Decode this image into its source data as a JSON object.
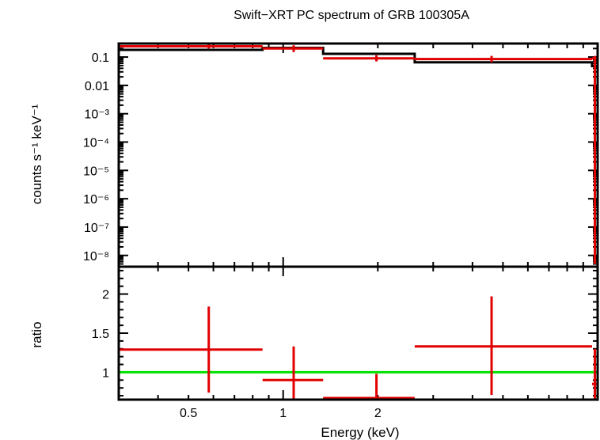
{
  "chart_data": [
    {
      "type": "line",
      "title": "Swift−XRT PC spectrum of GRB 100305A",
      "xlabel": "",
      "ylabel": "counts s⁻¹ keV⁻¹",
      "xscale": "log",
      "yscale": "log",
      "xlim": [
        0.3,
        10
      ],
      "ylim": [
        4e-09,
        0.3
      ],
      "y_tick_labels": [
        {
          "value": 0.1,
          "label": "0.1"
        },
        {
          "value": 0.01,
          "label": "0.01"
        },
        {
          "value": 0.001,
          "label": "10⁻³"
        },
        {
          "value": 0.0001,
          "label": "10⁻⁴"
        },
        {
          "value": 1e-05,
          "label": "10⁻⁵"
        },
        {
          "value": 1e-06,
          "label": "10⁻⁶"
        },
        {
          "value": 1e-07,
          "label": "10⁻⁷"
        },
        {
          "value": 1e-08,
          "label": "10⁻⁸"
        }
      ],
      "model_steps": [
        {
          "x0": 0.3,
          "x1": 0.86,
          "y": 0.18
        },
        {
          "x0": 0.86,
          "x1": 1.34,
          "y": 0.21
        },
        {
          "x0": 1.34,
          "x1": 2.62,
          "y": 0.13
        },
        {
          "x0": 2.62,
          "x1": 9.6,
          "y": 0.065
        },
        {
          "x0": 9.6,
          "x1": 10,
          "y": 0.048
        }
      ],
      "data_points": [
        {
          "x": 0.58,
          "xlo": 0.3,
          "xhi": 0.86,
          "y": 0.24,
          "ylo": 0.2,
          "yhi": 0.28
        },
        {
          "x": 1.08,
          "xlo": 0.86,
          "xhi": 1.34,
          "y": 0.2,
          "ylo": 0.15,
          "yhi": 0.26
        },
        {
          "x": 1.98,
          "xlo": 1.34,
          "xhi": 2.62,
          "y": 0.09,
          "ylo": 0.07,
          "yhi": 0.115
        },
        {
          "x": 4.6,
          "xlo": 2.62,
          "xhi": 9.6,
          "y": 0.085,
          "ylo": 0.065,
          "yhi": 0.11
        },
        {
          "x": 9.8,
          "xlo": 9.6,
          "xhi": 10,
          "y": 0.09,
          "ylo": 5e-09,
          "yhi": 0.11
        }
      ]
    },
    {
      "type": "line",
      "title": "",
      "xlabel": "Energy (keV)",
      "ylabel": "ratio",
      "xscale": "log",
      "yscale": "linear",
      "xlim": [
        0.3,
        10
      ],
      "ylim": [
        0.65,
        2.35
      ],
      "x_tick_labels": [
        {
          "value": 0.5,
          "label": "0.5"
        },
        {
          "value": 1,
          "label": "1"
        },
        {
          "value": 2,
          "label": "2"
        }
      ],
      "y_tick_labels": [
        {
          "value": 1,
          "label": "1"
        },
        {
          "value": 1.5,
          "label": "1.5"
        },
        {
          "value": 2,
          "label": "2"
        }
      ],
      "reference_line": 1,
      "data_points": [
        {
          "x": 0.58,
          "xlo": 0.3,
          "xhi": 0.86,
          "y": 1.29,
          "ylo": 0.74,
          "yhi": 1.84
        },
        {
          "x": 1.08,
          "xlo": 0.86,
          "xhi": 1.34,
          "y": 0.9,
          "ylo": 0.6,
          "yhi": 1.33
        },
        {
          "x": 1.98,
          "xlo": 1.34,
          "xhi": 2.62,
          "y": 0.67,
          "ylo": 0.6,
          "yhi": 0.98
        },
        {
          "x": 4.6,
          "xlo": 2.62,
          "xhi": 9.6,
          "y": 1.33,
          "ylo": 0.71,
          "yhi": 1.97
        },
        {
          "x": 9.8,
          "xlo": 9.6,
          "xhi": 10,
          "y": 0.85,
          "ylo": 0.6,
          "yhi": 1.3
        }
      ]
    }
  ],
  "colors": {
    "data": "#e00000",
    "model": "#000000",
    "reference": "#00e000"
  }
}
